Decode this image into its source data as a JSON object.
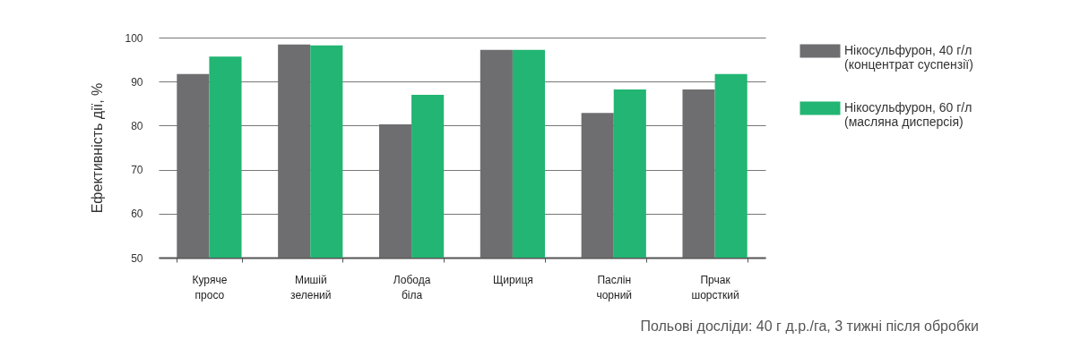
{
  "chart_data": {
    "type": "bar",
    "ylabel": "Ефективність дії, %",
    "categories": [
      "Куряче\nпросо",
      "Мишій\nзелений",
      "Лобода\nбіла",
      "Щириця",
      "Паслін\nчорний",
      "Прчак\nшорсткий"
    ],
    "series": [
      {
        "name": "Нікосульфурон, 40 г/л\n(концентрат суспензії)",
        "color": "#6e6e70",
        "values": [
          91.7,
          98.4,
          80.3,
          97.2,
          82.9,
          88.2
        ]
      },
      {
        "name": "Нікосульфурон, 60 г/л\n(масляна дисперсія)",
        "color": "#22b573",
        "values": [
          95.7,
          98.2,
          87.0,
          97.2,
          88.2,
          91.7
        ]
      }
    ],
    "ylim": [
      50,
      100
    ],
    "yticks": [
      50,
      60,
      70,
      80,
      90,
      100
    ],
    "grid": "y",
    "legend": "right",
    "annotations": [
      "Польові досліди: 40 г д.р./га, 3 тижні після обробки"
    ]
  }
}
